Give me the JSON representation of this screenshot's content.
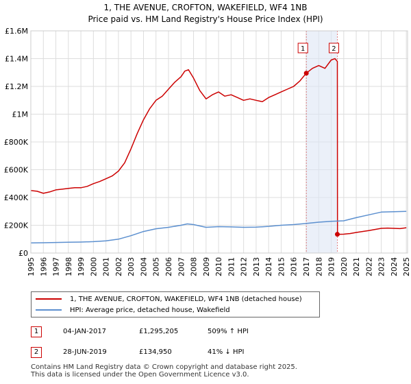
{
  "header": {
    "title_line1": "1, THE AVENUE, CROFTON, WAKEFIELD, WF4 1NB",
    "title_line2": "Price paid vs. HM Land Registry's House Price Index (HPI)"
  },
  "colors": {
    "property_series": "#cc0000",
    "hpi_series": "#5b8fcf",
    "grid": "#dddddd",
    "highlight": "#dde6f5"
  },
  "chart_data": {
    "type": "line",
    "title": "1, THE AVENUE, CROFTON, WAKEFIELD, WF4 1NB — Price paid vs. HM Land Registry's House Price Index (HPI)",
    "xlabel": "",
    "ylabel": "",
    "xlim": [
      1995,
      2025.1
    ],
    "ylim": [
      0,
      1600000
    ],
    "x_ticks": [
      1995,
      1996,
      1997,
      1998,
      1999,
      2000,
      2001,
      2002,
      2003,
      2004,
      2005,
      2006,
      2007,
      2008,
      2009,
      2010,
      2011,
      2012,
      2013,
      2014,
      2015,
      2016,
      2017,
      2018,
      2019,
      2020,
      2021,
      2022,
      2023,
      2024,
      2025
    ],
    "y_ticks": [
      {
        "value": 0,
        "label": "£0"
      },
      {
        "value": 200000,
        "label": "£200K"
      },
      {
        "value": 400000,
        "label": "£400K"
      },
      {
        "value": 600000,
        "label": "£600K"
      },
      {
        "value": 800000,
        "label": "£800K"
      },
      {
        "value": 1000000,
        "label": "£1M"
      },
      {
        "value": 1200000,
        "label": "£1.2M"
      },
      {
        "value": 1400000,
        "label": "£1.4M"
      },
      {
        "value": 1600000,
        "label": "£1.6M"
      }
    ],
    "grid": true,
    "highlight_range": [
      2017.01,
      2019.49
    ],
    "series": [
      {
        "name": "1, THE AVENUE, CROFTON, WAKEFIELD, WF4 1NB (detached house)",
        "color": "#cc0000",
        "x": [
          1995,
          1995.5,
          1996,
          1996.5,
          1997,
          1997.5,
          1998,
          1998.5,
          1999,
          1999.5,
          2000,
          2000.5,
          2001,
          2001.5,
          2002,
          2002.5,
          2003,
          2003.5,
          2004,
          2004.5,
          2005,
          2005.5,
          2006,
          2006.5,
          2007,
          2007.3,
          2007.6,
          2008,
          2008.5,
          2009,
          2009.5,
          2010,
          2010.5,
          2011,
          2011.5,
          2012,
          2012.5,
          2013,
          2013.5,
          2014,
          2014.5,
          2015,
          2015.5,
          2016,
          2016.5,
          2017.01,
          2017.5,
          2018,
          2018.5,
          2019,
          2019.3,
          2019.49,
          2019.5,
          2020,
          2020.5,
          2021,
          2021.5,
          2022,
          2022.5,
          2023,
          2023.5,
          2024,
          2024.5,
          2025
        ],
        "values": [
          450000,
          445000,
          430000,
          440000,
          455000,
          460000,
          465000,
          470000,
          470000,
          480000,
          500000,
          515000,
          535000,
          555000,
          590000,
          650000,
          750000,
          860000,
          960000,
          1040000,
          1100000,
          1130000,
          1180000,
          1230000,
          1270000,
          1310000,
          1320000,
          1260000,
          1170000,
          1110000,
          1140000,
          1160000,
          1130000,
          1140000,
          1120000,
          1100000,
          1110000,
          1100000,
          1090000,
          1120000,
          1140000,
          1160000,
          1180000,
          1200000,
          1240000,
          1295205,
          1330000,
          1350000,
          1330000,
          1390000,
          1400000,
          1380000,
          134950,
          136000,
          140000,
          148000,
          155000,
          162000,
          170000,
          178000,
          180000,
          178000,
          176000,
          182000
        ]
      },
      {
        "name": "HPI: Average price, detached house, Wakefield",
        "color": "#5b8fcf",
        "x": [
          1995,
          1996,
          1997,
          1998,
          1999,
          2000,
          2001,
          2002,
          2003,
          2004,
          2005,
          2006,
          2007,
          2007.5,
          2008,
          2009,
          2010,
          2011,
          2012,
          2013,
          2014,
          2015,
          2016,
          2017,
          2018,
          2019,
          2020,
          2021,
          2022,
          2023,
          2024,
          2025
        ],
        "values": [
          73000,
          74000,
          76000,
          78000,
          79000,
          82000,
          88000,
          100000,
          125000,
          155000,
          175000,
          185000,
          200000,
          210000,
          205000,
          185000,
          190000,
          188000,
          185000,
          186000,
          192000,
          200000,
          205000,
          213000,
          222000,
          228000,
          232000,
          255000,
          275000,
          295000,
          298000,
          300000
        ]
      }
    ],
    "annotations": [
      {
        "label": "1",
        "x": 2017.01,
        "value": 1295205
      },
      {
        "label": "2",
        "x": 2019.49,
        "value": 134950
      }
    ]
  },
  "legend": {
    "property_label": "1, THE AVENUE, CROFTON, WAKEFIELD, WF4 1NB (detached house)",
    "hpi_label": "HPI: Average price, detached house, Wakefield"
  },
  "transactions": [
    {
      "num": "1",
      "date": "04-JAN-2017",
      "price": "£1,295,205",
      "hpi": "509% ↑ HPI"
    },
    {
      "num": "2",
      "date": "28-JUN-2019",
      "price": "£134,950",
      "hpi": "41% ↓ HPI"
    }
  ],
  "footer": {
    "line1": "Contains HM Land Registry data © Crown copyright and database right 2025.",
    "line2": "This data is licensed under the Open Government Licence v3.0."
  }
}
